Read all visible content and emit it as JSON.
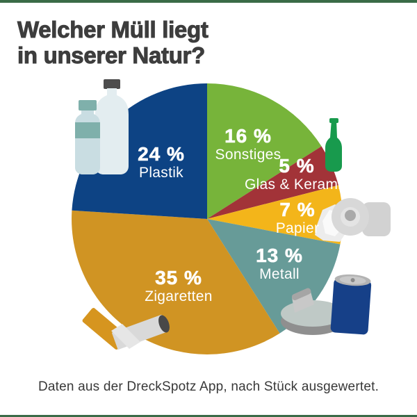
{
  "header": {
    "title_line1": "Welcher Müll liegt",
    "title_line2": "in unserer Natur?"
  },
  "theme": {
    "accent_bar_color": "#3a6b47",
    "title_color": "#3d3d3d",
    "label_text_color": "#ffffff",
    "background_color": "#ffffff"
  },
  "chart_data": {
    "type": "pie",
    "title": "Welcher Müll liegt in unserer Natur?",
    "direction": "clockwise",
    "start_angle_deg": 0,
    "legend_position": "inside-slices",
    "slices": [
      {
        "label": "Sonstiges",
        "value_pct": 16,
        "display_pct": "16 %",
        "color": "#77b43a"
      },
      {
        "label": "Glas & Keramik",
        "value_pct": 5,
        "display_pct": "5 %",
        "color": "#a23338"
      },
      {
        "label": "Papier",
        "value_pct": 7,
        "display_pct": "7 %",
        "color": "#f3b51a"
      },
      {
        "label": "Metall",
        "value_pct": 13,
        "display_pct": "13 %",
        "color": "#679b98"
      },
      {
        "label": "Zigaretten",
        "value_pct": 35,
        "display_pct": "35 %",
        "color": "#d09423"
      },
      {
        "label": "Plastik",
        "value_pct": 24,
        "display_pct": "24 %",
        "color": "#0d4384"
      }
    ],
    "source_note": "Daten aus der DreckSpotz App, nach Stück ausgewertet."
  },
  "illustrations": [
    "plastic-bottles-icon",
    "glass-bottle-icon",
    "toilet-paper-icon",
    "metal-can-and-tin-icon",
    "cigarette-butt-icon"
  ]
}
